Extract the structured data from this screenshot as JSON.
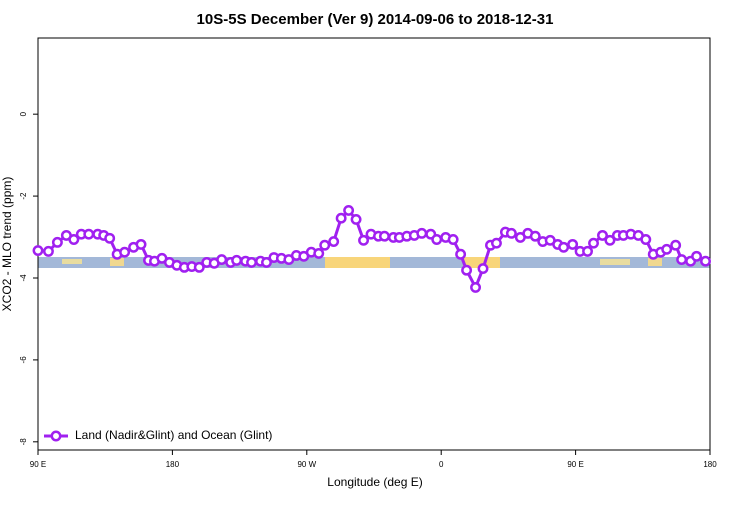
{
  "chart_data": {
    "type": "line",
    "title": "10S-5S December (Ver 9)   2014-09-06 to 2018-12-31",
    "xlabel": "Longitude (deg E)",
    "ylabel": "XCO2 - MLO trend (ppm)",
    "xlim": [
      90,
      540
    ],
    "ylim": [
      -8.2,
      1.86
    ],
    "xticks": [
      {
        "value": 90,
        "label": "90 E"
      },
      180,
      {
        "value": 270,
        "label": "90 W"
      },
      {
        "value": 360,
        "label": "0"
      },
      {
        "value": 450,
        "label": "90 E"
      },
      {
        "value": 540,
        "label": "180"
      }
    ],
    "yticks": [
      0,
      -2,
      -4,
      -6,
      -8
    ],
    "legend": "bottom-left",
    "series": [
      {
        "name": "Land (Nadir&Glint) and Ocean (Glint)",
        "color": "#a020f0",
        "x": [
          90,
          97,
          103,
          109,
          114,
          119,
          124,
          130,
          134,
          138,
          143,
          148,
          154,
          159,
          164,
          168,
          173,
          178,
          183,
          188,
          193,
          198,
          203,
          208,
          213,
          219,
          223,
          229,
          233,
          239,
          243,
          248,
          253,
          258,
          263,
          268,
          273,
          278,
          282,
          288,
          293,
          298,
          303,
          308,
          313,
          318,
          322,
          328,
          332,
          337,
          342,
          347,
          353,
          357,
          363,
          368,
          373,
          377,
          383,
          388,
          393,
          397,
          403,
          407,
          413,
          418,
          423,
          428,
          433,
          438,
          442,
          448,
          453,
          458,
          462,
          468,
          473,
          478,
          482,
          487,
          492,
          497,
          502,
          507,
          511,
          517,
          521,
          527,
          531,
          537
        ],
        "values": [
          -3.33,
          -3.35,
          -3.13,
          -2.96,
          -3.06,
          -2.93,
          -2.93,
          -2.93,
          -2.96,
          -3.03,
          -3.42,
          -3.37,
          -3.25,
          -3.18,
          -3.57,
          -3.59,
          -3.52,
          -3.62,
          -3.69,
          -3.74,
          -3.72,
          -3.74,
          -3.62,
          -3.64,
          -3.55,
          -3.62,
          -3.57,
          -3.59,
          -3.62,
          -3.59,
          -3.62,
          -3.5,
          -3.52,
          -3.55,
          -3.45,
          -3.47,
          -3.37,
          -3.4,
          -3.2,
          -3.11,
          -2.54,
          -2.35,
          -2.57,
          -3.08,
          -2.93,
          -2.98,
          -2.98,
          -3.01,
          -3.01,
          -2.98,
          -2.96,
          -2.91,
          -2.93,
          -3.06,
          -3.01,
          -3.06,
          -3.42,
          -3.81,
          -4.23,
          -3.77,
          -3.2,
          -3.15,
          -2.88,
          -2.91,
          -3.01,
          -2.91,
          -2.98,
          -3.11,
          -3.08,
          -3.18,
          -3.25,
          -3.18,
          -3.35,
          -3.35,
          -3.15,
          -2.96,
          -3.08,
          -2.96,
          -2.96,
          -2.93,
          -2.96,
          -3.06,
          -3.42,
          -3.37,
          -3.3,
          -3.2,
          -3.55,
          -3.59,
          -3.47,
          -3.59
        ]
      }
    ]
  }
}
